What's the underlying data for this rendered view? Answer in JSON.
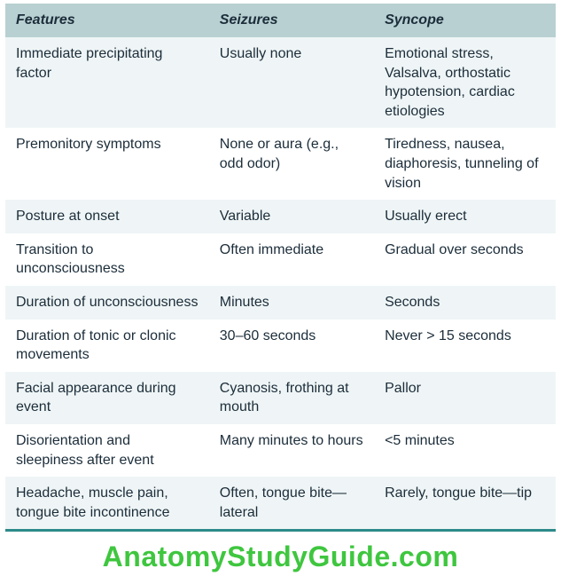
{
  "table": {
    "header_bg": "#b8d0d2",
    "row_odd_bg": "#eff5f6",
    "row_even_bg": "#ffffff",
    "header_text_color": "#1b2d3a",
    "cell_text_color": "#1b2d3a",
    "border_color": "#2e8a8a",
    "font_size": 16,
    "columns": [
      "Features",
      "Seizures",
      "Syncope"
    ],
    "rows": [
      [
        "Immediate precipitating factor",
        "Usually none",
        "Emotional stress, Valsalva, orthostatic hypotension, cardiac etiologies"
      ],
      [
        "Premonitory symptoms",
        "None or aura (e.g., odd odor)",
        "Tiredness, nausea, diaphoresis, tunneling of vision"
      ],
      [
        "Posture at onset",
        "Variable",
        "Usually erect"
      ],
      [
        "Transition to unconsciousness",
        "Often immediate",
        "Gradual over seconds"
      ],
      [
        "Duration of unconsciousness",
        "Minutes",
        "Seconds"
      ],
      [
        "Duration of tonic or clonic movements",
        "30–60 seconds",
        "Never > 15 seconds"
      ],
      [
        "Facial appearance during event",
        "Cyanosis, frothing at mouth",
        "Pallor"
      ],
      [
        "Disorientation and sleepiness after event",
        "Many minutes to hours",
        "<5 minutes"
      ],
      [
        "Headache, muscle pain, tongue bite incontinence",
        "Often, tongue bite—lateral",
        "Rarely, tongue bite—tip"
      ]
    ]
  },
  "watermark": {
    "text": "AnatomyStudyGuide.com",
    "color": "#3fc63f",
    "font_size": 32
  }
}
